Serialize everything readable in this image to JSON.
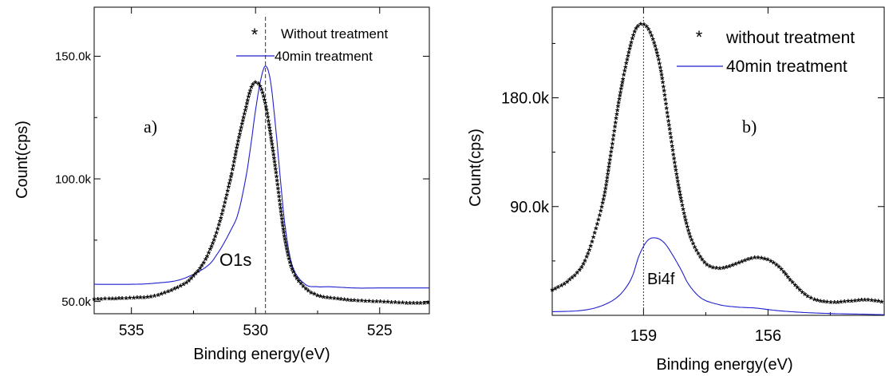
{
  "chart_data": [
    {
      "type": "scatter",
      "panel_label": "a)",
      "peak_label": "O1s",
      "xlabel": "Binding energy(eV)",
      "ylabel": "Count(cps)",
      "xlim": [
        536.5,
        523.0
      ],
      "ylim": [
        45000,
        170000
      ],
      "x_reversed": true,
      "xticks": [
        535,
        530,
        525
      ],
      "xtick_labels": [
        "535",
        "530",
        "525"
      ],
      "yticks": [
        50000,
        100000,
        150000
      ],
      "ytick_labels": [
        "50.0k",
        "100.0k",
        "150.0k"
      ],
      "reference_line_x": 529.6,
      "legend_position": "top-right",
      "series": [
        {
          "name": "Without treatment",
          "marker": "asterisk",
          "color": "#000000",
          "x": [
            536.5,
            535,
            534,
            533,
            532.5,
            532,
            531.5,
            531,
            530.7,
            530.4,
            530.2,
            530.0,
            529.8,
            529.6,
            529.4,
            529.2,
            529.0,
            528.8,
            528.5,
            528.0,
            527.5,
            527,
            526,
            525,
            524,
            523
          ],
          "y": [
            50500,
            51000,
            52000,
            56000,
            60000,
            67000,
            80000,
            100000,
            115000,
            128000,
            136000,
            139000,
            137000,
            130000,
            118000,
            104000,
            88000,
            74000,
            62000,
            55000,
            52000,
            51000,
            50000,
            49500,
            49000,
            49000
          ]
        },
        {
          "name": "40min treatment",
          "marker": "line",
          "color": "#1f1fcf",
          "x": [
            536.5,
            535,
            534,
            533,
            532,
            531.5,
            531.0,
            530.7,
            530.4,
            530.2,
            530.0,
            529.8,
            529.6,
            529.4,
            529.2,
            529.0,
            528.8,
            528.5,
            528.0,
            527.5,
            527,
            526,
            525,
            523
          ],
          "y": [
            57000,
            57000,
            57500,
            59000,
            64000,
            70000,
            79000,
            86000,
            100000,
            113000,
            128000,
            140000,
            146000,
            140000,
            122000,
            100000,
            80000,
            64000,
            57000,
            56000,
            56000,
            55500,
            55500,
            55500
          ]
        }
      ]
    },
    {
      "type": "scatter",
      "panel_label": "b)",
      "peak_label": "Bi4f",
      "xlabel": "Binding energy(eV)",
      "ylabel": "Count(cps)",
      "xlim": [
        161.2,
        153.2
      ],
      "ylim": [
        0,
        255000
      ],
      "x_reversed": true,
      "xticks": [
        159,
        156
      ],
      "xtick_labels": [
        "159",
        "156"
      ],
      "yticks": [
        90000,
        180000
      ],
      "ytick_labels": [
        "90.0k",
        "180.0k"
      ],
      "reference_line_x": 159.0,
      "legend_position": "top-right",
      "series": [
        {
          "name": "without treatment",
          "marker": "asterisk",
          "color": "#000000",
          "x": [
            161.2,
            160.8,
            160.4,
            160.0,
            159.8,
            159.6,
            159.4,
            159.2,
            159.0,
            158.8,
            158.6,
            158.4,
            158.2,
            158.0,
            157.8,
            157.5,
            157.2,
            156.9,
            156.6,
            156.3,
            156.0,
            155.7,
            155.4,
            155.0,
            154.5,
            154.0,
            153.6,
            153.2
          ],
          "y": [
            20000,
            28000,
            45000,
            90000,
            130000,
            175000,
            210000,
            235000,
            240000,
            230000,
            205000,
            160000,
            115000,
            80000,
            58000,
            42000,
            38000,
            40000,
            44000,
            47000,
            45000,
            38000,
            26000,
            14000,
            10000,
            11000,
            12000,
            10000
          ]
        },
        {
          "name": "40min treatment",
          "marker": "line",
          "color": "#1f1fcf",
          "x": [
            161.2,
            160.5,
            160.0,
            159.6,
            159.3,
            159.1,
            158.9,
            158.7,
            158.5,
            158.3,
            158.1,
            157.9,
            157.6,
            157.2,
            156.8,
            156.3,
            155.8,
            155.2,
            154.5,
            153.8,
            153.2
          ],
          "y": [
            3000,
            4000,
            8000,
            16000,
            30000,
            50000,
            62000,
            64000,
            60000,
            50000,
            38000,
            25000,
            14000,
            9000,
            7000,
            6000,
            4000,
            2500,
            1500,
            1000,
            500
          ]
        }
      ]
    }
  ]
}
